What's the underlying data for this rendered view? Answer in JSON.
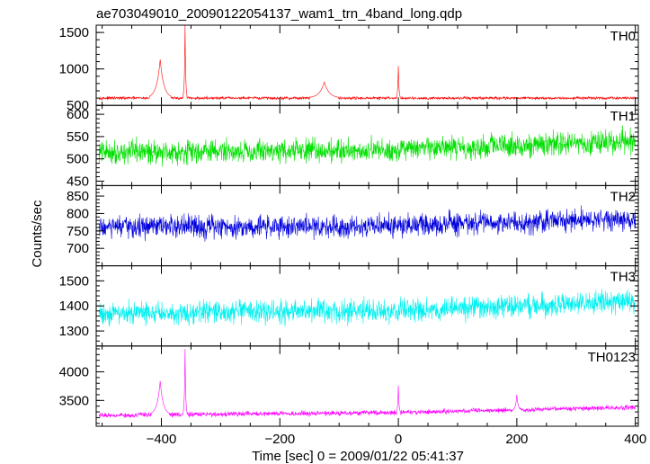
{
  "chart_data": {
    "type": "line",
    "title": "ae703049010_20090122054137_wam1_trn_4band_long.qdp",
    "xlabel": "Time [sec] 0 = 2009/01/22 05:41:37",
    "ylabel": "Counts/sec",
    "xlim": [
      -510,
      405
    ],
    "x_ticks": [
      -400,
      -200,
      0,
      200,
      400
    ],
    "x_tick_labels": [
      "−400",
      "−200",
      "0",
      "200",
      "400"
    ],
    "panels": [
      {
        "name": "TH0",
        "color": "#ff0000",
        "ylim": [
          500,
          1600
        ],
        "y_ticks": [
          500,
          1000,
          1500
        ],
        "y_tick_labels": [
          "500",
          "1000",
          "1500"
        ],
        "baseline": [
          [
            -505,
            600
          ],
          [
            400,
            600
          ]
        ],
        "noise": 18,
        "spikes": [
          {
            "x": -402,
            "peak": 1130,
            "decay": 6
          },
          {
            "x": -360,
            "peak": 1600,
            "decay": 1
          },
          {
            "x": -125,
            "peak": 820,
            "decay": 8
          },
          {
            "x": 0,
            "peak": 1040,
            "decay": 1
          }
        ]
      },
      {
        "name": "TH1",
        "color": "#00e000",
        "ylim": [
          440,
          620
        ],
        "y_ticks": [
          450,
          500,
          550,
          600
        ],
        "y_tick_labels": [
          "450",
          "500",
          "550",
          "600"
        ],
        "baseline": [
          [
            -505,
            515
          ],
          [
            0,
            520
          ],
          [
            400,
            540
          ]
        ],
        "noise": 24,
        "spikes": []
      },
      {
        "name": "TH2",
        "color": "#0000dd",
        "ylim": [
          650,
          880
        ],
        "y_ticks": [
          700,
          750,
          800,
          850
        ],
        "y_tick_labels": [
          "700",
          "750",
          "800",
          "850"
        ],
        "baseline": [
          [
            -505,
            760
          ],
          [
            0,
            765
          ],
          [
            400,
            785
          ]
        ],
        "noise": 30,
        "spikes": []
      },
      {
        "name": "TH3",
        "color": "#00f0f0",
        "ylim": [
          1240,
          1560
        ],
        "y_ticks": [
          1300,
          1400,
          1500
        ],
        "y_tick_labels": [
          "1300",
          "1400",
          "1500"
        ],
        "baseline": [
          [
            -505,
            1370
          ],
          [
            0,
            1380
          ],
          [
            400,
            1420
          ]
        ],
        "noise": 42,
        "spikes": []
      },
      {
        "name": "TH0123",
        "color": "#ff00ff",
        "ylim": [
          3050,
          4450
        ],
        "y_ticks": [
          3500,
          4000
        ],
        "y_tick_labels": [
          "3500",
          "4000"
        ],
        "baseline": [
          [
            -505,
            3240
          ],
          [
            0,
            3290
          ],
          [
            400,
            3380
          ]
        ],
        "noise": 38,
        "spikes": [
          {
            "x": -402,
            "peak": 3840,
            "decay": 5
          },
          {
            "x": -360,
            "peak": 4400,
            "decay": 1
          },
          {
            "x": 0,
            "peak": 3760,
            "decay": 1
          },
          {
            "x": 200,
            "peak": 3600,
            "decay": 2
          }
        ]
      }
    ]
  }
}
